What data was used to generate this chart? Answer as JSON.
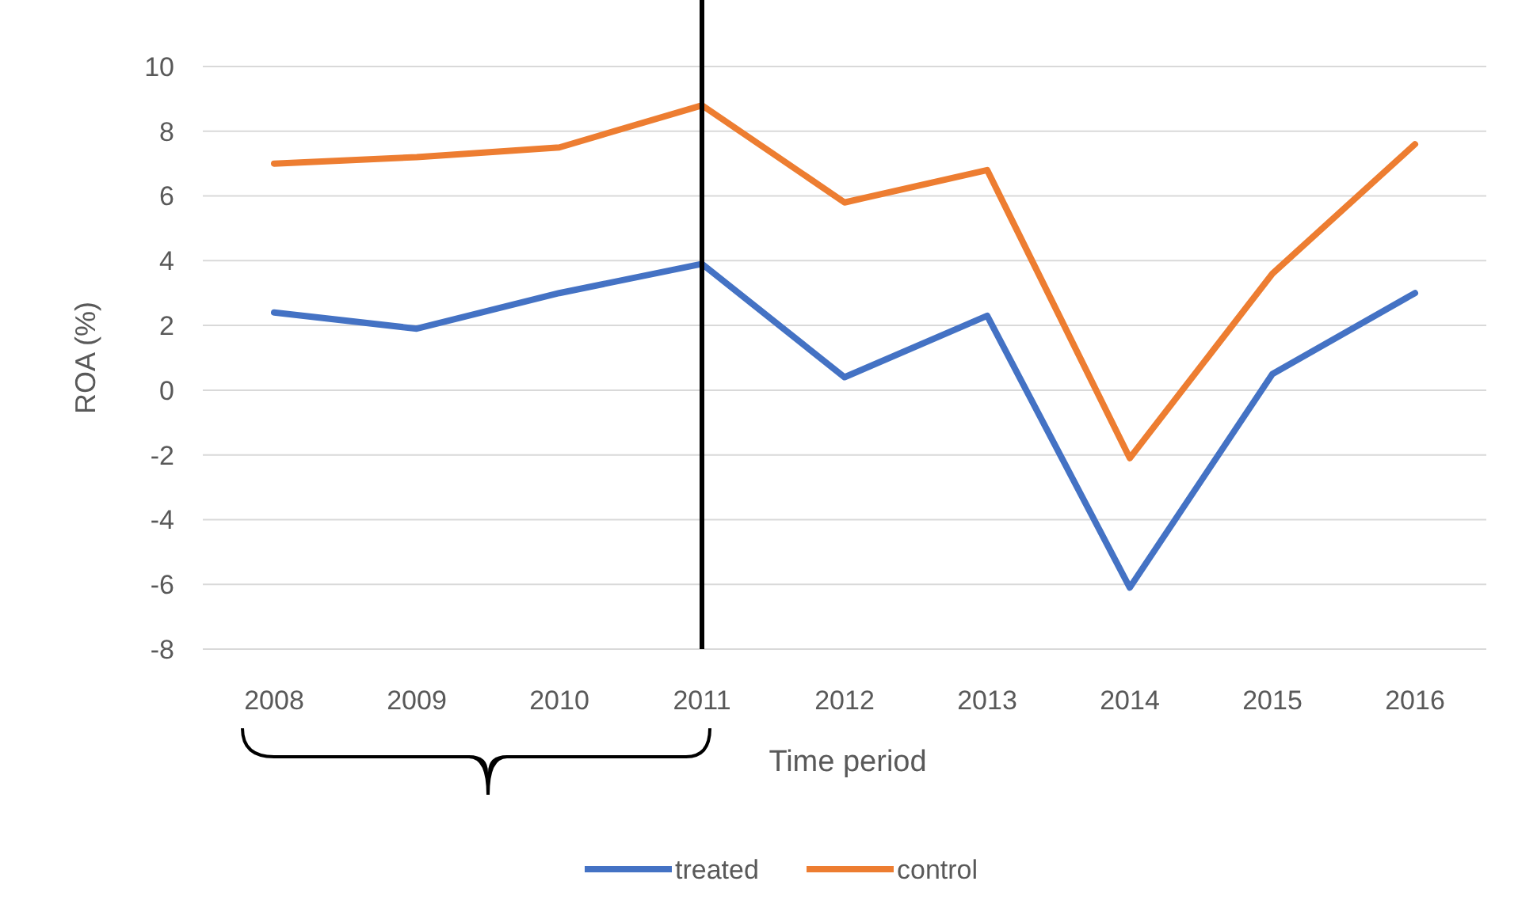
{
  "chart_data": {
    "type": "line",
    "xlabel": "Time period",
    "ylabel": "ROA (%)",
    "categories": [
      "2008",
      "2009",
      "2010",
      "2011",
      "2012",
      "2013",
      "2014",
      "2015",
      "2016"
    ],
    "series": [
      {
        "name": "treated",
        "color": "#4472c4",
        "values": [
          2.4,
          1.9,
          3.0,
          3.9,
          0.4,
          2.3,
          -6.1,
          0.5,
          3.0
        ]
      },
      {
        "name": "control",
        "color": "#ed7d31",
        "values": [
          7.0,
          7.2,
          7.5,
          8.8,
          5.8,
          6.8,
          -2.1,
          3.6,
          7.6
        ]
      }
    ],
    "ylim": [
      -8,
      10
    ],
    "yticks": [
      -8,
      -6,
      -4,
      -2,
      0,
      2,
      4,
      6,
      8,
      10
    ],
    "grid": "y",
    "legend": "bottom",
    "marker": "none",
    "line_style": "solid",
    "ref_lines": [
      {
        "axis": "x",
        "value": "2011",
        "color": "#000000"
      }
    ]
  }
}
